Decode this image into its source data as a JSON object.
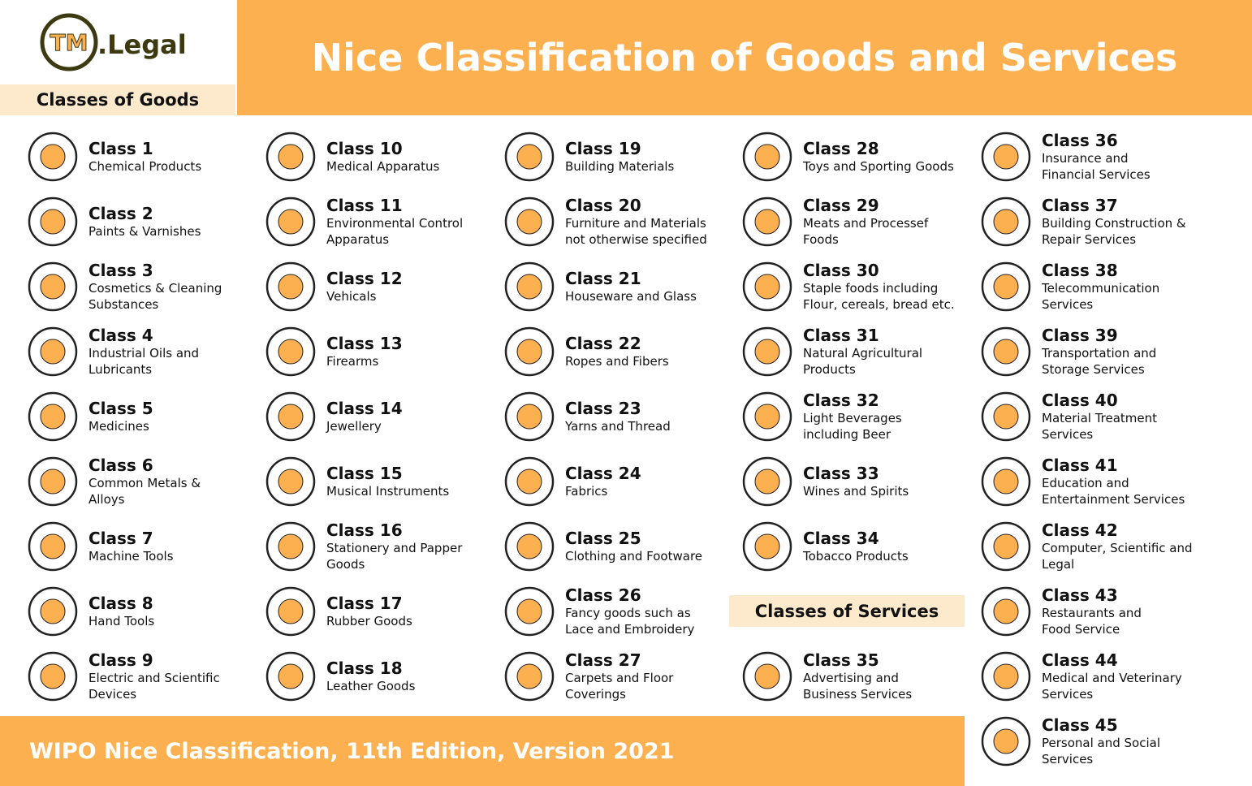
{
  "header": {
    "logo_mark": "TM",
    "logo_text": ".Legal",
    "title": "Nice Classification of Goods and Services",
    "goods_heading": "Classes of Goods"
  },
  "goods_columns": [
    [
      {
        "class": "Class 1",
        "lines": [
          "Chemical Products"
        ]
      },
      {
        "class": "Class 2",
        "lines": [
          "Paints & Varnishes"
        ]
      },
      {
        "class": "Class 3",
        "lines": [
          "Cosmetics & Cleaning",
          "Substances"
        ]
      },
      {
        "class": "Class 4",
        "lines": [
          "Industrial Oils and",
          "Lubricants"
        ]
      },
      {
        "class": "Class 5",
        "lines": [
          "Medicines"
        ]
      },
      {
        "class": "Class 6",
        "lines": [
          "Common Metals &",
          "Alloys"
        ]
      },
      {
        "class": "Class 7",
        "lines": [
          "Machine Tools"
        ]
      },
      {
        "class": "Class 8",
        "lines": [
          "Hand Tools"
        ]
      },
      {
        "class": "Class 9",
        "lines": [
          "Electric and Scientific",
          "Devices"
        ]
      }
    ],
    [
      {
        "class": "Class 10",
        "lines": [
          "Medical Apparatus"
        ]
      },
      {
        "class": "Class 11",
        "lines": [
          "Environmental Control",
          "Apparatus"
        ]
      },
      {
        "class": "Class 12",
        "lines": [
          "Vehicals"
        ]
      },
      {
        "class": "Class 13",
        "lines": [
          "Firearms"
        ]
      },
      {
        "class": "Class 14",
        "lines": [
          "Jewellery"
        ]
      },
      {
        "class": "Class 15",
        "lines": [
          "Musical Instruments"
        ]
      },
      {
        "class": "Class 16",
        "lines": [
          "Stationery and Papper",
          "Goods"
        ]
      },
      {
        "class": "Class 17",
        "lines": [
          "Rubber Goods"
        ]
      },
      {
        "class": "Class 18",
        "lines": [
          "Leather Goods"
        ]
      }
    ],
    [
      {
        "class": "Class 19",
        "lines": [
          "Building Materials"
        ]
      },
      {
        "class": "Class 20",
        "lines": [
          "Furniture and Materials",
          "not otherwise specified"
        ]
      },
      {
        "class": "Class 21",
        "lines": [
          "Houseware and Glass"
        ]
      },
      {
        "class": "Class 22",
        "lines": [
          "Ropes and Fibers"
        ]
      },
      {
        "class": "Class 23",
        "lines": [
          "Yarns and Thread"
        ]
      },
      {
        "class": "Class 24",
        "lines": [
          "Fabrics"
        ]
      },
      {
        "class": "Class 25",
        "lines": [
          "Clothing and Footware"
        ]
      },
      {
        "class": "Class 26",
        "lines": [
          "Fancy goods such as",
          "Lace and Embroidery"
        ]
      },
      {
        "class": "Class 27",
        "lines": [
          "Carpets and Floor",
          "Coverings"
        ]
      }
    ],
    [
      {
        "class": "Class 28",
        "lines": [
          "Toys and Sporting Goods"
        ]
      },
      {
        "class": "Class 29",
        "lines": [
          "Meats and Processef",
          "Foods"
        ]
      },
      {
        "class": "Class 30",
        "lines": [
          "Staple foods including",
          "Flour, cereals, bread etc."
        ]
      },
      {
        "class": "Class 31",
        "lines": [
          "Natural Agricultural",
          "Products"
        ]
      },
      {
        "class": "Class 32",
        "lines": [
          "Light Beverages",
          "including Beer"
        ]
      },
      {
        "class": "Class 33",
        "lines": [
          "Wines and Spirits"
        ]
      },
      {
        "class": "Class 34",
        "lines": [
          "Tobacco Products"
        ]
      }
    ]
  ],
  "services_heading": "Classes of Services",
  "services": [
    {
      "class": "Class 35",
      "lines": [
        "Advertising and",
        "Business Services"
      ]
    },
    {
      "class": "Class 36",
      "lines": [
        "Insurance and",
        "Financial Services"
      ]
    },
    {
      "class": "Class 37",
      "lines": [
        "Building Construction &",
        "Repair Services"
      ]
    },
    {
      "class": "Class 38",
      "lines": [
        "Telecommunication",
        "Services"
      ]
    },
    {
      "class": "Class 39",
      "lines": [
        "Transportation and",
        "Storage Services"
      ]
    },
    {
      "class": "Class 40",
      "lines": [
        "Material Treatment",
        "Services"
      ]
    },
    {
      "class": "Class 41",
      "lines": [
        "Education and",
        "Entertainment Services"
      ]
    },
    {
      "class": "Class 42",
      "lines": [
        "Computer, Scientific and",
        "Legal"
      ]
    },
    {
      "class": "Class 43",
      "lines": [
        "Restaurants and",
        "Food Service"
      ]
    },
    {
      "class": "Class 44",
      "lines": [
        "Medical and Veterinary",
        "Services"
      ]
    },
    {
      "class": "Class 45",
      "lines": [
        "Personal and Social",
        "Services"
      ]
    }
  ],
  "footer": "WIPO Nice Classification, 11th Edition, Version 2021"
}
